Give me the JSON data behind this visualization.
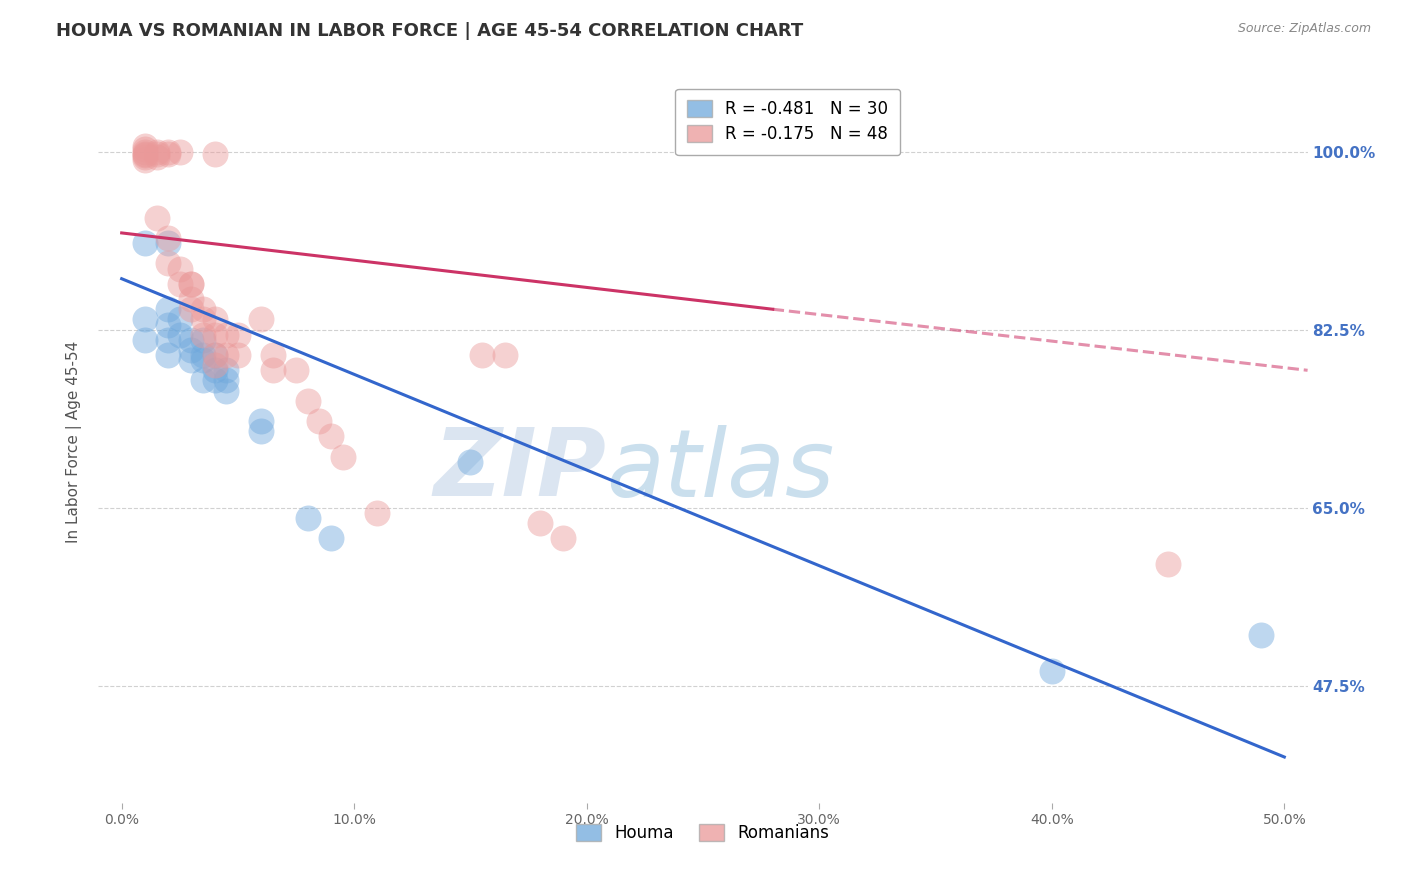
{
  "title": "HOUMA VS ROMANIAN IN LABOR FORCE | AGE 45-54 CORRELATION CHART",
  "source": "Source: ZipAtlas.com",
  "ylabel": "In Labor Force | Age 45-54",
  "x_tick_labels": [
    "0.0%",
    "10.0%",
    "20.0%",
    "30.0%",
    "40.0%",
    "50.0%"
  ],
  "x_tick_values": [
    0.0,
    0.1,
    0.2,
    0.3,
    0.4,
    0.5
  ],
  "y_tick_labels": [
    "47.5%",
    "65.0%",
    "82.5%",
    "100.0%"
  ],
  "y_tick_values": [
    0.475,
    0.65,
    0.825,
    1.0
  ],
  "xlim": [
    -0.01,
    0.51
  ],
  "ylim": [
    0.36,
    1.07
  ],
  "legend_houma": "R = -0.481   N = 30",
  "legend_romanian": "R = -0.175   N = 48",
  "legend_labels": [
    "Houma",
    "Romanians"
  ],
  "houma_color": "#6fa8dc",
  "romanian_color": "#ea9999",
  "houma_line_color": "#3366cc",
  "romanian_line_color": "#cc3366",
  "watermark_left": "ZIP",
  "watermark_right": "atlas",
  "blue_dots": [
    [
      0.01,
      0.91
    ],
    [
      0.02,
      0.91
    ],
    [
      0.01,
      0.835
    ],
    [
      0.01,
      0.815
    ],
    [
      0.02,
      0.845
    ],
    [
      0.02,
      0.83
    ],
    [
      0.02,
      0.815
    ],
    [
      0.02,
      0.8
    ],
    [
      0.025,
      0.835
    ],
    [
      0.025,
      0.82
    ],
    [
      0.03,
      0.815
    ],
    [
      0.03,
      0.805
    ],
    [
      0.03,
      0.795
    ],
    [
      0.035,
      0.815
    ],
    [
      0.035,
      0.8
    ],
    [
      0.035,
      0.795
    ],
    [
      0.035,
      0.775
    ],
    [
      0.04,
      0.8
    ],
    [
      0.04,
      0.785
    ],
    [
      0.04,
      0.775
    ],
    [
      0.045,
      0.785
    ],
    [
      0.045,
      0.775
    ],
    [
      0.045,
      0.765
    ],
    [
      0.06,
      0.735
    ],
    [
      0.06,
      0.725
    ],
    [
      0.08,
      0.64
    ],
    [
      0.09,
      0.62
    ],
    [
      0.15,
      0.695
    ],
    [
      0.4,
      0.49
    ],
    [
      0.49,
      0.525
    ]
  ],
  "romanian_dots": [
    [
      0.01,
      1.005
    ],
    [
      0.01,
      1.002
    ],
    [
      0.01,
      1.0
    ],
    [
      0.01,
      0.998
    ],
    [
      0.01,
      0.997
    ],
    [
      0.01,
      0.995
    ],
    [
      0.01,
      0.992
    ],
    [
      0.015,
      1.0
    ],
    [
      0.015,
      0.998
    ],
    [
      0.015,
      0.995
    ],
    [
      0.02,
      1.0
    ],
    [
      0.02,
      0.998
    ],
    [
      0.025,
      1.0
    ],
    [
      0.04,
      0.998
    ],
    [
      0.015,
      0.935
    ],
    [
      0.02,
      0.915
    ],
    [
      0.02,
      0.89
    ],
    [
      0.025,
      0.87
    ],
    [
      0.025,
      0.885
    ],
    [
      0.03,
      0.87
    ],
    [
      0.03,
      0.87
    ],
    [
      0.03,
      0.855
    ],
    [
      0.03,
      0.845
    ],
    [
      0.035,
      0.845
    ],
    [
      0.035,
      0.835
    ],
    [
      0.035,
      0.82
    ],
    [
      0.04,
      0.835
    ],
    [
      0.04,
      0.82
    ],
    [
      0.04,
      0.8
    ],
    [
      0.04,
      0.79
    ],
    [
      0.045,
      0.82
    ],
    [
      0.045,
      0.8
    ],
    [
      0.05,
      0.82
    ],
    [
      0.05,
      0.8
    ],
    [
      0.06,
      0.835
    ],
    [
      0.065,
      0.8
    ],
    [
      0.065,
      0.785
    ],
    [
      0.075,
      0.785
    ],
    [
      0.08,
      0.755
    ],
    [
      0.085,
      0.735
    ],
    [
      0.09,
      0.72
    ],
    [
      0.095,
      0.7
    ],
    [
      0.11,
      0.645
    ],
    [
      0.155,
      0.8
    ],
    [
      0.165,
      0.8
    ],
    [
      0.18,
      0.635
    ],
    [
      0.19,
      0.62
    ],
    [
      0.45,
      0.595
    ]
  ],
  "blue_line": [
    [
      0.0,
      0.875
    ],
    [
      0.5,
      0.405
    ]
  ],
  "pink_line_solid": [
    [
      0.0,
      0.92
    ],
    [
      0.28,
      0.845
    ]
  ],
  "pink_line_dashed": [
    [
      0.28,
      0.845
    ],
    [
      0.51,
      0.785
    ]
  ],
  "grid_color": "#cccccc",
  "background_color": "#ffffff",
  "title_fontsize": 13,
  "axis_label_fontsize": 11,
  "tick_fontsize": 10,
  "right_axis_color": "#4472c4"
}
